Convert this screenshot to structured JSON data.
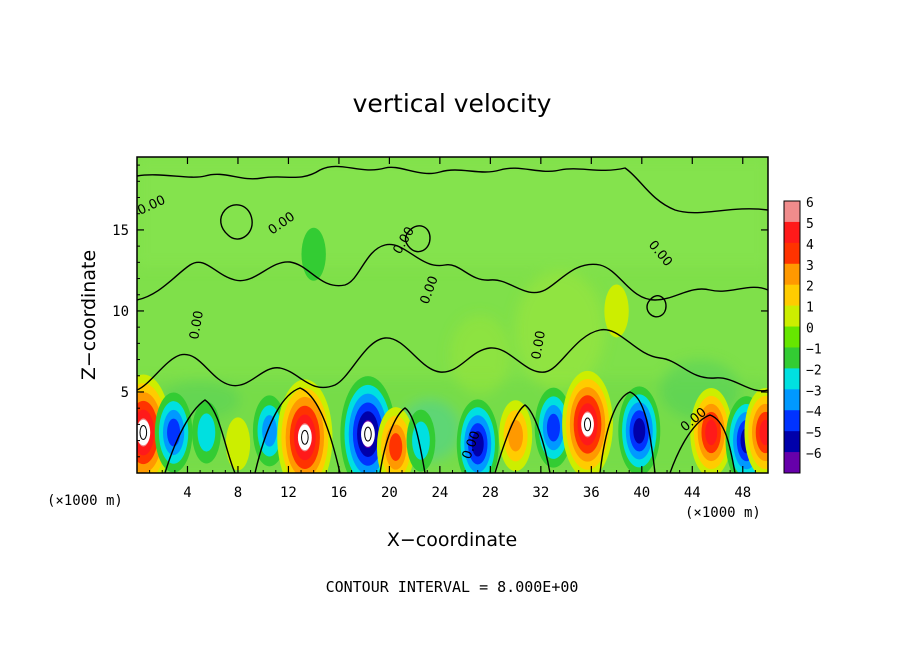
{
  "chart_data": {
    "type": "heatmap",
    "title": "vertical velocity",
    "xlabel": "X−coordinate",
    "ylabel": "Z−coordinate",
    "x_unit_left": "(×1000 m)",
    "x_unit_right": "(×1000 m)",
    "xlim": [
      0,
      50
    ],
    "ylim": [
      0,
      19.5
    ],
    "x_ticks": [
      4,
      8,
      12,
      16,
      20,
      24,
      28,
      32,
      36,
      40,
      44,
      48
    ],
    "y_ticks": [
      5,
      10,
      15
    ],
    "contour_interval_text": "CONTOUR INTERVAL = 8.000E+00",
    "contour_level_label": "0.00",
    "colorbar": {
      "ticks": [
        6,
        5,
        4,
        3,
        2,
        1,
        0,
        -1,
        -2,
        -3,
        -4,
        -5,
        -6
      ],
      "tick_labels": [
        "6",
        "5",
        "4",
        "3",
        "2",
        "1",
        "0",
        "−1",
        "−2",
        "−3",
        "−4",
        "−5",
        "−6"
      ],
      "colors": [
        "#f08c8c",
        "#ff1a1a",
        "#ff3300",
        "#ff9900",
        "#ffcc00",
        "#ccee00",
        "#66e600",
        "#33cc33",
        "#00e0e0",
        "#0099ff",
        "#0033ff",
        "#0000aa",
        "#6600aa"
      ]
    },
    "cells": [
      {
        "x": 0.5,
        "z": 2.5,
        "w": 9
      },
      {
        "x": 2.9,
        "z": 2.5,
        "w": -4
      },
      {
        "x": 5.5,
        "z": 2.5,
        "w": -2
      },
      {
        "x": 8.0,
        "z": 1.8,
        "w": 1
      },
      {
        "x": 10.5,
        "z": 2.6,
        "w": -3
      },
      {
        "x": 13.3,
        "z": 2.2,
        "w": 14
      },
      {
        "x": 18.3,
        "z": 2.4,
        "w": -8
      },
      {
        "x": 20.5,
        "z": 1.6,
        "w": 4
      },
      {
        "x": 22.5,
        "z": 2.0,
        "w": -2
      },
      {
        "x": 27.0,
        "z": 1.8,
        "w": -5
      },
      {
        "x": 30.0,
        "z": 2.3,
        "w": 3
      },
      {
        "x": 33.0,
        "z": 2.8,
        "w": -4
      },
      {
        "x": 35.7,
        "z": 3.0,
        "w": 7
      },
      {
        "x": 39.8,
        "z": 2.6,
        "w": -5
      },
      {
        "x": 45.5,
        "z": 2.5,
        "w": 5
      },
      {
        "x": 48.3,
        "z": 2.0,
        "w": -5
      },
      {
        "x": 49.8,
        "z": 2.5,
        "w": 5
      },
      {
        "x": 14.0,
        "z": 13.5,
        "w": -1
      },
      {
        "x": 38.0,
        "z": 10.0,
        "w": 1
      }
    ]
  }
}
